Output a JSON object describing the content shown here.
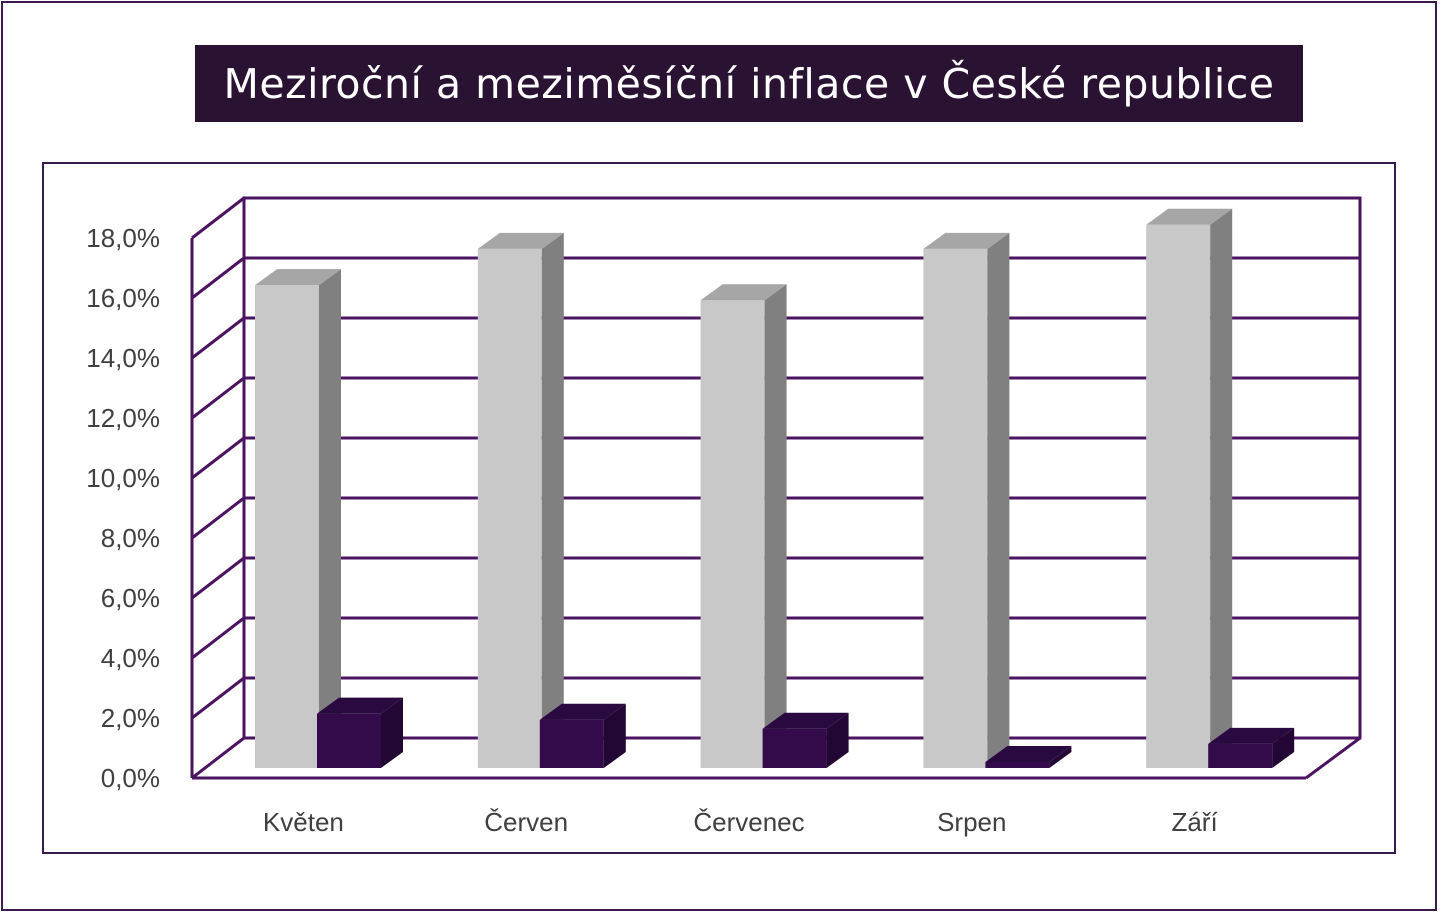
{
  "title": "Meziroční a meziměsíční inflace v České republice",
  "colors": {
    "frame": "#3b1a4d",
    "title_bg": "#2a1233",
    "grid": "#4a1460",
    "series_yoy_front": "#c8c8c8",
    "series_yoy_top": "#a6a6a6",
    "series_yoy_side": "#808080",
    "series_mom_front": "#330a4a",
    "series_mom_top": "#2a0840",
    "series_mom_side": "#220633"
  },
  "chart_data": {
    "type": "bar",
    "categories": [
      "Květen",
      "Červen",
      "Červenec",
      "Srpen",
      "Září"
    ],
    "series": [
      {
        "values": [
          16.0,
          17.2,
          15.5,
          17.2,
          18.0
        ]
      },
      {
        "values": [
          1.8,
          1.6,
          1.3,
          0.2,
          0.8
        ]
      }
    ],
    "ylim": [
      0,
      18
    ],
    "yticks": [
      "0,0%",
      "2,0%",
      "4,0%",
      "6,0%",
      "8,0%",
      "10,0%",
      "12,0%",
      "14,0%",
      "16,0%",
      "18,0%"
    ],
    "grid": true,
    "three_d": true,
    "legend": "none"
  }
}
